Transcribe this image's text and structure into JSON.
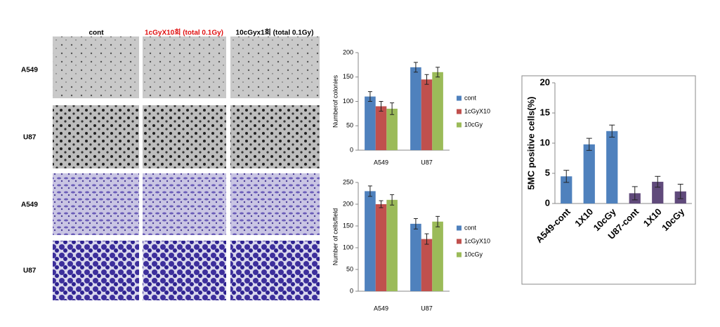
{
  "figure": {
    "column_headers": [
      "cont",
      "1cGyX10회 (total 0.1Gy)",
      "10cGyx1회 (total 0.1Gy)"
    ],
    "row_labels": [
      "A549",
      "U87",
      "A549",
      "U87"
    ]
  },
  "chart_data": [
    {
      "type": "bar",
      "y_label": "Numberof colonies",
      "categories": [
        "A549",
        "U87"
      ],
      "series": [
        {
          "name": "cont",
          "color": "#4f81bd",
          "values": [
            110,
            170
          ],
          "errors": [
            10,
            10
          ]
        },
        {
          "name": "1cGyX10",
          "color": "#c0504d",
          "values": [
            90,
            145
          ],
          "errors": [
            10,
            10
          ]
        },
        {
          "name": "10cGy",
          "color": "#9bbb59",
          "values": [
            85,
            160
          ],
          "errors": [
            12,
            10
          ]
        }
      ],
      "ylim": [
        0,
        200
      ],
      "yticks": [
        0,
        50,
        100,
        150,
        200
      ],
      "legend": "right"
    },
    {
      "type": "bar",
      "y_label": "Number of cells/field",
      "categories": [
        "A549",
        "U87"
      ],
      "series": [
        {
          "name": "cont",
          "color": "#4f81bd",
          "values": [
            230,
            155
          ],
          "errors": [
            12,
            12
          ]
        },
        {
          "name": "1cGyX10",
          "color": "#c0504d",
          "values": [
            200,
            120
          ],
          "errors": [
            8,
            12
          ]
        },
        {
          "name": "10cGy",
          "color": "#9bbb59",
          "values": [
            210,
            160
          ],
          "errors": [
            12,
            12
          ]
        }
      ],
      "ylim": [
        0,
        250
      ],
      "yticks": [
        0,
        50,
        100,
        150,
        200,
        250
      ],
      "legend": "right"
    },
    {
      "type": "bar",
      "y_label": "5MC positive cells(%)",
      "categories": [
        "A549-cont",
        "1X10",
        "10cGy",
        "U87-cont",
        "1X10",
        "10cGy"
      ],
      "values": [
        4.5,
        9.8,
        12,
        1.7,
        3.6,
        2.0
      ],
      "errors": [
        1,
        1,
        1,
        1.1,
        0.9,
        1.2
      ],
      "colors": [
        "#4f81bd",
        "#4f81bd",
        "#4f81bd",
        "#604a7b",
        "#604a7b",
        "#604a7b"
      ],
      "ylim": [
        0,
        20
      ],
      "yticks": [
        0,
        5,
        10,
        15,
        20
      ]
    }
  ]
}
